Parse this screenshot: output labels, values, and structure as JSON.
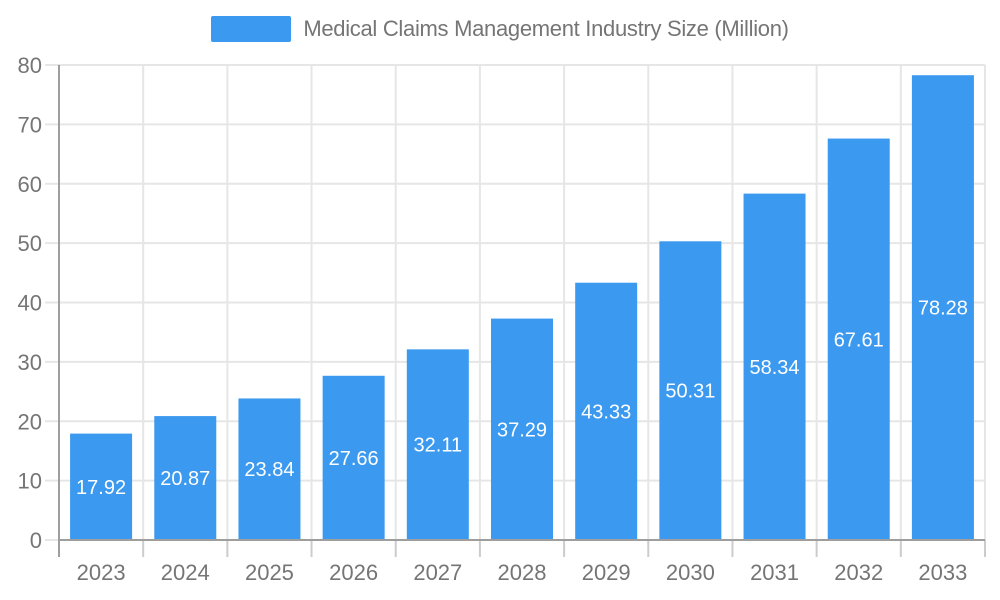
{
  "legend": {
    "label": "Medical Claims Management Industry Size (Million)"
  },
  "chart_data": {
    "type": "bar",
    "title": "Medical Claims Management Industry Size (Million)",
    "categories": [
      "2023",
      "2024",
      "2025",
      "2026",
      "2027",
      "2028",
      "2029",
      "2030",
      "2031",
      "2032",
      "2033"
    ],
    "values": [
      17.92,
      20.87,
      23.84,
      27.66,
      32.11,
      37.29,
      43.33,
      50.31,
      58.34,
      67.61,
      78.28
    ],
    "value_labels": [
      "17.92",
      "20.87",
      "23.84",
      "27.66",
      "32.11",
      "37.29",
      "43.33",
      "50.31",
      "58.34",
      "67.61",
      "78.28"
    ],
    "xlabel": "",
    "ylabel": "",
    "ylim": [
      0,
      80
    ],
    "ytick_step": 10,
    "ytick_labels": [
      "0",
      "10",
      "20",
      "30",
      "40",
      "50",
      "60",
      "70",
      "80"
    ],
    "grid": true,
    "legend_position": "top",
    "colors": {
      "bar": "#3b99ef",
      "bar_label_text": "#ffffff",
      "axis_line": "#9e9e9e",
      "gridline": "#e6e6e6",
      "tick_stub": "#cccccc",
      "axis_text": "#757575",
      "background": "#ffffff"
    }
  }
}
